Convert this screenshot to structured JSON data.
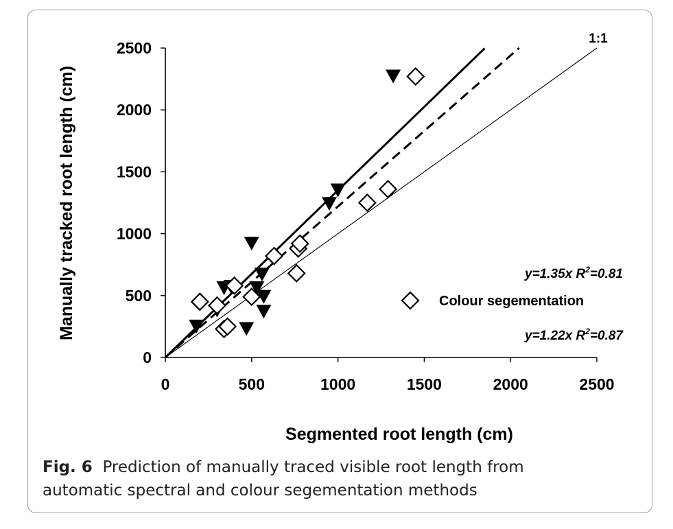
{
  "chart_data": {
    "type": "scatter",
    "xlabel": "Segmented root length (cm)",
    "ylabel": "Manually tracked root length (cm)",
    "xlim": [
      0,
      2500
    ],
    "ylim": [
      0,
      2500
    ],
    "xticks": [
      "0",
      "500",
      "1000",
      "1500",
      "2000",
      "2500"
    ],
    "yticks": [
      "0",
      "500",
      "1000",
      "1500",
      "2000",
      "2500"
    ],
    "grid": false,
    "series": [
      {
        "name": "",
        "marker": "filled-triangle-down",
        "color": "#000000",
        "points": [
          [
            180,
            250
          ],
          [
            300,
            380
          ],
          [
            340,
            560
          ],
          [
            380,
            570
          ],
          [
            470,
            230
          ],
          [
            500,
            920
          ],
          [
            530,
            560
          ],
          [
            560,
            670
          ],
          [
            570,
            490
          ],
          [
            570,
            370
          ],
          [
            950,
            1240
          ],
          [
            1000,
            1350
          ],
          [
            1320,
            2270
          ]
        ]
      },
      {
        "name": "Colour segementation",
        "marker": "open-diamond",
        "color": "#000000",
        "points": [
          [
            200,
            450
          ],
          [
            300,
            420
          ],
          [
            340,
            230
          ],
          [
            360,
            250
          ],
          [
            400,
            580
          ],
          [
            500,
            490
          ],
          [
            630,
            820
          ],
          [
            760,
            680
          ],
          [
            770,
            880
          ],
          [
            780,
            920
          ],
          [
            1170,
            1250
          ],
          [
            1290,
            1360
          ],
          [
            1450,
            2270
          ]
        ]
      }
    ],
    "lines": [
      {
        "style": "solid",
        "slope": 1.35,
        "x_range": [
          0,
          1850
        ],
        "label": "y=1.35x R",
        "r2": "=0.81"
      },
      {
        "style": "dashed",
        "slope": 1.22,
        "x_range": [
          0,
          2050
        ],
        "label": "y=1.22x R",
        "r2": "=0.87"
      },
      {
        "style": "thin",
        "slope": 1.0,
        "x_range": [
          0,
          2500
        ],
        "label": "1:1"
      }
    ],
    "legend": "right"
  },
  "caption": {
    "label": "Fig. 6",
    "text": "Prediction of manually traced visible root length from automatic spectral and colour segementation methods"
  }
}
